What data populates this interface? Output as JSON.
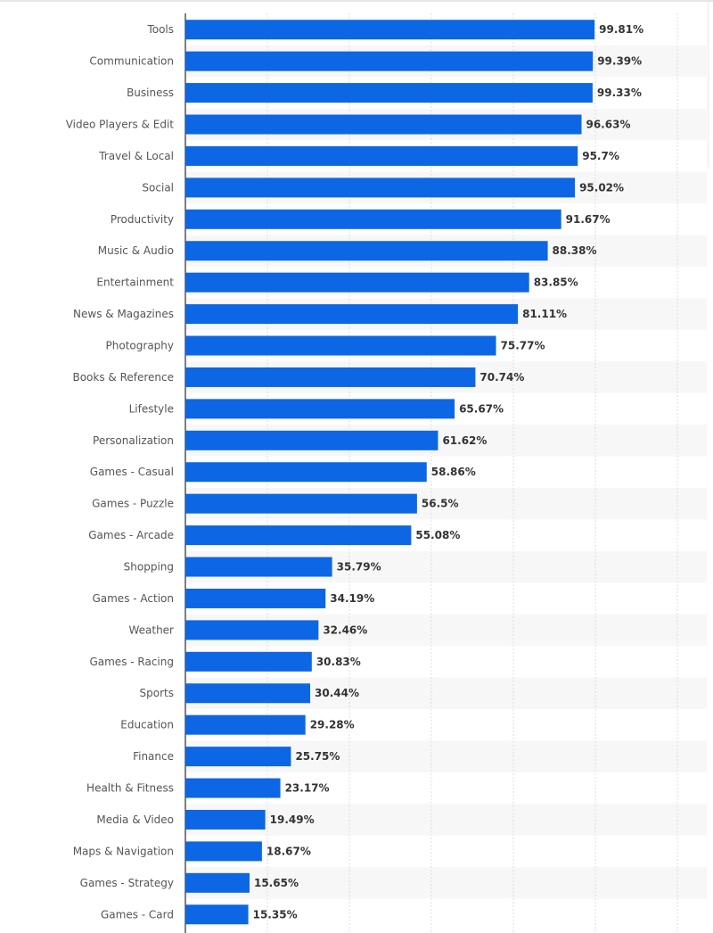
{
  "chart_data": {
    "type": "bar",
    "orientation": "horizontal",
    "categories": [
      "Tools",
      "Communication",
      "Business",
      "Video Players & Edit",
      "Travel & Local",
      "Social",
      "Productivity",
      "Music & Audio",
      "Entertainment",
      "News & Magazines",
      "Photography",
      "Books & Reference",
      "Lifestyle",
      "Personalization",
      "Games - Casual",
      "Games - Puzzle",
      "Games - Arcade",
      "Shopping",
      "Games - Action",
      "Weather",
      "Games - Racing",
      "Sports",
      "Education",
      "Finance",
      "Health & Fitness",
      "Media & Video",
      "Maps & Navigation",
      "Games - Strategy",
      "Games - Card"
    ],
    "values": [
      99.81,
      99.39,
      99.33,
      96.63,
      95.7,
      95.02,
      91.67,
      88.38,
      83.85,
      81.11,
      75.77,
      70.74,
      65.67,
      61.62,
      58.86,
      56.5,
      55.08,
      35.79,
      34.19,
      32.46,
      30.83,
      30.44,
      29.28,
      25.75,
      23.17,
      19.49,
      18.67,
      15.65,
      15.35
    ],
    "labels": [
      "99.81%",
      "99.39%",
      "99.33%",
      "96.63%",
      "95.7%",
      "95.02%",
      "91.67%",
      "88.38%",
      "83.85%",
      "81.11%",
      "75.77%",
      "70.74%",
      "65.67%",
      "61.62%",
      "58.86%",
      "56.5%",
      "55.08%",
      "35.79%",
      "34.19%",
      "32.46%",
      "30.83%",
      "30.44%",
      "29.28%",
      "25.75%",
      "23.17%",
      "19.49%",
      "18.67%",
      "15.65%",
      "15.35%"
    ],
    "xlim": [
      0,
      120
    ],
    "grid": true,
    "bar_color": "#0d66e4",
    "title": "",
    "xlabel": "",
    "ylabel": ""
  }
}
